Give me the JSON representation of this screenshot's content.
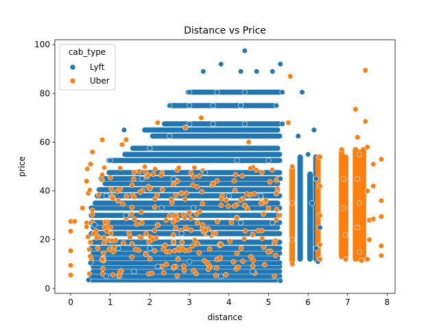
{
  "chart_data": {
    "type": "scatter",
    "title": "Distance vs Price",
    "xlabel": "distance",
    "ylabel": "price",
    "xlim": [
      -0.4,
      8.2
    ],
    "ylim": [
      -2,
      102
    ],
    "xticks": [
      0,
      1,
      2,
      3,
      4,
      5,
      6,
      7,
      8
    ],
    "yticks": [
      0,
      20,
      40,
      60,
      80,
      100
    ],
    "grid": false,
    "legend": {
      "title": "cab_type",
      "position": "top-left"
    },
    "series": [
      {
        "name": "Lyft",
        "color": "#1f77b4",
        "points": [
          [
            0.45,
            3.5
          ],
          [
            0.9,
            5
          ],
          [
            1.6,
            7
          ],
          [
            2.2,
            9
          ],
          [
            3.0,
            11
          ],
          [
            3.8,
            5
          ],
          [
            4.6,
            7
          ],
          [
            5.3,
            3.2
          ],
          [
            0.5,
            10.5
          ],
          [
            1.2,
            16.5
          ],
          [
            2.0,
            16.5
          ],
          [
            2.8,
            22.5
          ],
          [
            3.5,
            22.5
          ],
          [
            4.3,
            27
          ],
          [
            5.1,
            27
          ],
          [
            0.6,
            26
          ],
          [
            1.4,
            30
          ],
          [
            2.3,
            33
          ],
          [
            3.1,
            33
          ],
          [
            4.0,
            38
          ],
          [
            4.8,
            38
          ],
          [
            5.3,
            45
          ],
          [
            0.9,
            38
          ],
          [
            1.8,
            45
          ],
          [
            2.6,
            45
          ],
          [
            3.4,
            47.5
          ],
          [
            4.2,
            52.5
          ],
          [
            5.0,
            52.5
          ],
          [
            1.0,
            52.5
          ],
          [
            1.35,
            65
          ],
          [
            2.0,
            57.5
          ],
          [
            2.5,
            62.5
          ],
          [
            3.0,
            67.5
          ],
          [
            3.6,
            67.5
          ],
          [
            4.4,
            67.5
          ],
          [
            5.35,
            67.5
          ],
          [
            2.5,
            75
          ],
          [
            3.0,
            75
          ],
          [
            3.6,
            75
          ],
          [
            4.3,
            75
          ],
          [
            5.2,
            75
          ],
          [
            3.0,
            80.5
          ],
          [
            3.7,
            80.5
          ],
          [
            4.4,
            80.5
          ],
          [
            5.35,
            80.5
          ],
          [
            5.85,
            80.5
          ],
          [
            3.35,
            89
          ],
          [
            3.8,
            92
          ],
          [
            4.3,
            89
          ],
          [
            4.7,
            89
          ],
          [
            5.1,
            89
          ],
          [
            5.3,
            92
          ],
          [
            4.4,
            97.5
          ],
          [
            6.15,
            65
          ],
          [
            5.75,
            62.5
          ],
          [
            6.0,
            55
          ],
          [
            6.2,
            45
          ],
          [
            6.1,
            35
          ],
          [
            6.3,
            25
          ],
          [
            6.2,
            16.5
          ],
          [
            6.25,
            11
          ]
        ]
      },
      {
        "name": "Uber",
        "color": "#ff7f0e",
        "points": [
          [
            0.0,
            27.5
          ],
          [
            0.0,
            23.5
          ],
          [
            0.0,
            15.5
          ],
          [
            0.0,
            9.5
          ],
          [
            0.0,
            5.5
          ],
          [
            0.1,
            27.5
          ],
          [
            0.3,
            33
          ],
          [
            0.4,
            44
          ],
          [
            0.5,
            51
          ],
          [
            0.55,
            56
          ],
          [
            0.8,
            61
          ],
          [
            1.3,
            59
          ],
          [
            1.4,
            61
          ],
          [
            0.8,
            12
          ],
          [
            1.1,
            17
          ],
          [
            1.5,
            21
          ],
          [
            1.9,
            14
          ],
          [
            2.2,
            26
          ],
          [
            2.6,
            19
          ],
          [
            3.0,
            31
          ],
          [
            3.4,
            24
          ],
          [
            3.8,
            18
          ],
          [
            4.2,
            29
          ],
          [
            4.6,
            22
          ],
          [
            5.0,
            15
          ],
          [
            1.2,
            36
          ],
          [
            2.0,
            41
          ],
          [
            2.8,
            39
          ],
          [
            3.6,
            43
          ],
          [
            4.4,
            34
          ],
          [
            5.2,
            39
          ],
          [
            2.2,
            68
          ],
          [
            2.9,
            66
          ],
          [
            3.3,
            70
          ],
          [
            4.5,
            60
          ],
          [
            5.5,
            68
          ],
          [
            5.55,
            87
          ],
          [
            5.6,
            50
          ],
          [
            5.6,
            35
          ],
          [
            5.6,
            20
          ],
          [
            5.6,
            10
          ],
          [
            6.3,
            54
          ],
          [
            6.3,
            42
          ],
          [
            6.3,
            30
          ],
          [
            6.3,
            18
          ],
          [
            6.3,
            12
          ],
          [
            6.85,
            57
          ],
          [
            6.9,
            45
          ],
          [
            6.9,
            33
          ],
          [
            6.95,
            22
          ],
          [
            6.95,
            12
          ],
          [
            7.2,
            73.5
          ],
          [
            7.25,
            62
          ],
          [
            7.3,
            55
          ],
          [
            7.25,
            45
          ],
          [
            7.3,
            35
          ],
          [
            7.25,
            25
          ],
          [
            7.3,
            15
          ],
          [
            7.35,
            11.5
          ],
          [
            7.45,
            89.5
          ],
          [
            7.45,
            68.5
          ],
          [
            7.5,
            58
          ],
          [
            7.5,
            40
          ],
          [
            7.55,
            28
          ],
          [
            7.55,
            20
          ],
          [
            7.5,
            12
          ],
          [
            7.65,
            51
          ],
          [
            7.65,
            42
          ],
          [
            7.65,
            28.5
          ],
          [
            7.85,
            53
          ],
          [
            7.85,
            36
          ],
          [
            7.85,
            29.5
          ],
          [
            7.85,
            17.5
          ],
          [
            7.85,
            13.5
          ]
        ]
      }
    ]
  }
}
